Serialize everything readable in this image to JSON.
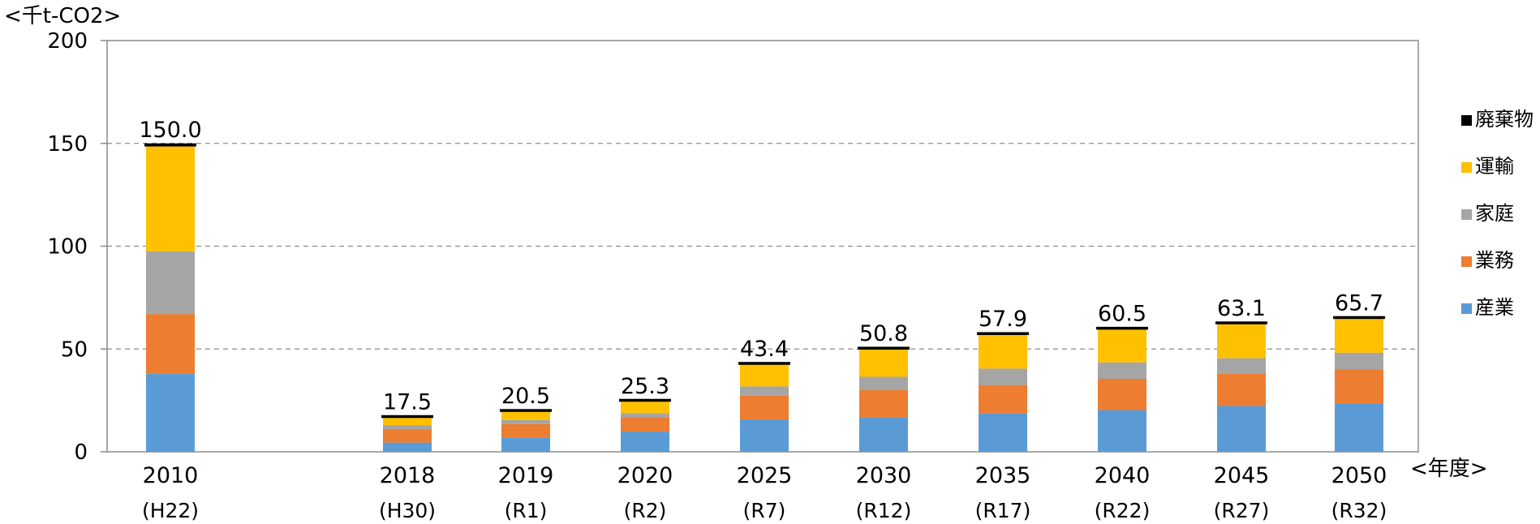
{
  "chart_data": {
    "type": "bar",
    "stacked": true,
    "y_unit_label": "<千t-CO2>",
    "x_unit_label": "<年度>",
    "ylim": [
      0,
      200
    ],
    "yticks": [
      0,
      50,
      100,
      150,
      200
    ],
    "grid": true,
    "legend_position": "right",
    "categories": [
      "2010",
      "2018",
      "2019",
      "2020",
      "2025",
      "2030",
      "2035",
      "2040",
      "2045",
      "2050"
    ],
    "sub_labels": [
      "(H22)",
      "(H30)",
      "(R1)",
      "(R2)",
      "(R7)",
      "(R12)",
      "(R17)",
      "(R22)",
      "(R27)",
      "(R32)"
    ],
    "totals": [
      "150.0",
      "17.5",
      "20.5",
      "25.3",
      "43.4",
      "50.8",
      "57.9",
      "60.5",
      "63.1",
      "65.7"
    ],
    "series": [
      {
        "name": "産業",
        "color": "#5B9BD5",
        "values": [
          38,
          4.5,
          7,
          9.8,
          15.8,
          16.8,
          18.8,
          20.3,
          22.3,
          23.5
        ]
      },
      {
        "name": "業務",
        "color": "#ED7D31",
        "values": [
          29,
          6.5,
          6.5,
          7,
          11.5,
          13.2,
          13.7,
          15.2,
          15.7,
          16.7
        ]
      },
      {
        "name": "家庭",
        "color": "#A5A5A5",
        "values": [
          30.5,
          2,
          2,
          2,
          4.5,
          6.5,
          8,
          8,
          7.5,
          8
        ]
      },
      {
        "name": "運輸",
        "color": "#FFC000",
        "values": [
          51,
          3.8,
          4.2,
          6,
          10.8,
          13.5,
          16.6,
          16.2,
          16.8,
          16.7
        ]
      },
      {
        "name": "廃棄物",
        "color": "#000000",
        "values": [
          1.5,
          0.7,
          0.8,
          0.5,
          0.8,
          0.8,
          0.8,
          0.8,
          0.8,
          0.8
        ]
      }
    ]
  }
}
